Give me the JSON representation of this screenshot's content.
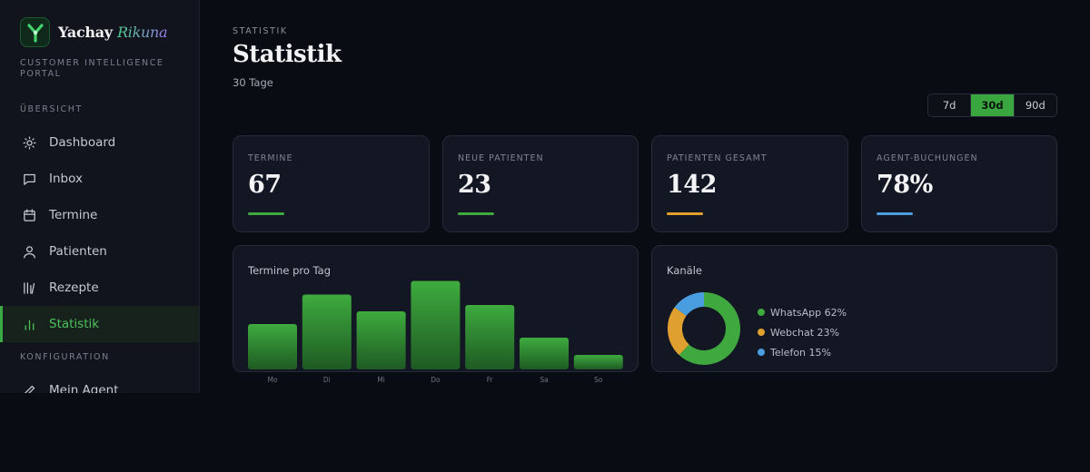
{
  "brand": {
    "name_part1": "Yachay ",
    "name_part2": "Rikuna",
    "subtitle": "CUSTOMER INTELLIGENCE PORTAL"
  },
  "sidebar": {
    "section_overview": "ÜBERSICHT",
    "items": [
      {
        "label": "Dashboard",
        "icon": "sun-icon"
      },
      {
        "label": "Inbox",
        "icon": "chat-icon"
      },
      {
        "label": "Termine",
        "icon": "calendar-icon"
      },
      {
        "label": "Patienten",
        "icon": "user-icon"
      },
      {
        "label": "Rezepte",
        "icon": "prescription-icon"
      },
      {
        "label": "Statistik",
        "icon": "bar-chart-icon",
        "active": true
      }
    ],
    "section_config": "KONFIGURATION",
    "config_items": [
      {
        "label": "Mein Agent",
        "icon": "pencil-icon"
      }
    ]
  },
  "header": {
    "breadcrumb": "STATISTIK",
    "title": "Statistik",
    "subtitle": "30 Tage"
  },
  "range": {
    "options": [
      "7d",
      "30d",
      "90d"
    ],
    "selected": "30d"
  },
  "stats": [
    {
      "label": "TERMINE",
      "value": "67",
      "color": "#3fa83f"
    },
    {
      "label": "NEUE PATIENTEN",
      "value": "23",
      "color": "#3fa83f"
    },
    {
      "label": "PATIENTEN GESAMT",
      "value": "142",
      "color": "#e0a030"
    },
    {
      "label": "AGENT-BUCHUNGEN",
      "value": "78%",
      "color": "#4a9ee0"
    }
  ],
  "colors": {
    "accent": "#3aa63f",
    "orange": "#e0a030",
    "blue": "#4a9ee0"
  },
  "chart_data": [
    {
      "type": "bar",
      "title": "Termine pro Tag",
      "categories": [
        "Mo",
        "Di",
        "Mi",
        "Do",
        "Fr",
        "Sa",
        "So"
      ],
      "values": [
        10,
        16.5,
        12.8,
        19.5,
        14.2,
        7,
        3.2
      ],
      "ylim": [
        0,
        20
      ],
      "grid": false
    },
    {
      "type": "pie",
      "title": "Kanäle",
      "labels": [
        "WhatsApp 62%",
        "Webchat 23%",
        "Telefon 15%"
      ],
      "values": [
        62,
        23,
        15
      ],
      "colors": [
        "#3fa83f",
        "#e0a030",
        "#4a9ee0"
      ],
      "legend": "right"
    }
  ]
}
